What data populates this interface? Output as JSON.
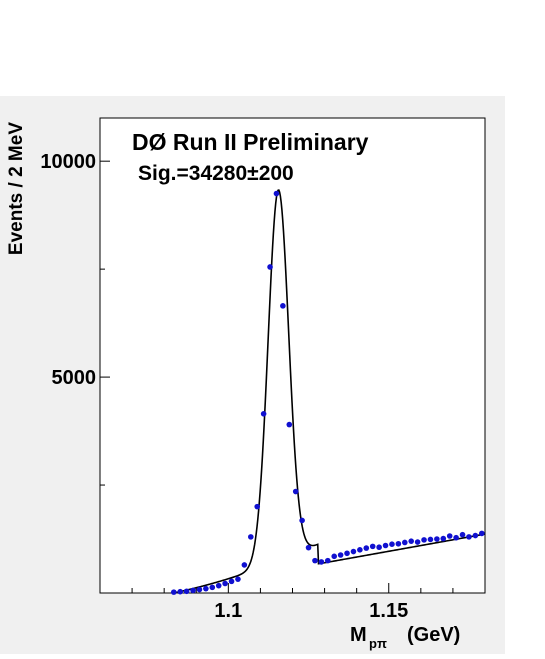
{
  "chart_data": {
    "type": "scatter",
    "title": "DØ Run II Preliminary",
    "annotation": "Sig.=34280±200",
    "xlabel_main": "M",
    "xlabel_sub": "pπ",
    "xlabel_unit": "(GeV)",
    "ylabel": "Events / 2 MeV",
    "xlim": [
      1.06,
      1.18
    ],
    "ylim": [
      0,
      11000
    ],
    "x_ticks": [
      1.1,
      1.15
    ],
    "x_tick_labels": [
      "1.1",
      "1.15"
    ],
    "y_ticks": [
      5000,
      10000
    ],
    "y_tick_labels": [
      "5000",
      "10000"
    ],
    "grid": false,
    "colors": {
      "points": "#1010d0",
      "fit": "#000000",
      "outer_bg": "#f0f0f0",
      "frame_bg": "#ffffff"
    },
    "series": [
      {
        "kind": "points",
        "x": [
          1.083,
          1.085,
          1.087,
          1.089,
          1.091,
          1.093,
          1.095,
          1.097,
          1.099,
          1.101,
          1.103,
          1.105,
          1.107,
          1.109,
          1.111,
          1.113,
          1.115,
          1.117,
          1.119,
          1.121,
          1.123,
          1.125,
          1.127,
          1.129,
          1.131,
          1.133,
          1.135,
          1.137,
          1.139,
          1.141,
          1.143,
          1.145,
          1.147,
          1.149,
          1.151,
          1.153,
          1.155,
          1.157,
          1.159,
          1.161,
          1.163,
          1.165,
          1.167,
          1.169,
          1.171,
          1.173,
          1.175,
          1.177,
          1.179
        ],
        "y": [
          20,
          30,
          40,
          60,
          80,
          100,
          130,
          170,
          220,
          270,
          320,
          650,
          1300,
          2000,
          4150,
          7550,
          9250,
          6650,
          3900,
          2350,
          1680,
          1050,
          750,
          720,
          750,
          850,
          880,
          920,
          960,
          1000,
          1040,
          1080,
          1060,
          1100,
          1130,
          1140,
          1170,
          1200,
          1180,
          1230,
          1240,
          1250,
          1260,
          1320,
          1280,
          1350,
          1300,
          1330,
          1380
        ]
      },
      {
        "kind": "fit",
        "model": "gaussian+linear",
        "signal": {
          "amplitude": 8600,
          "mean": 1.1156,
          "sigma": 0.0032
        },
        "background": {
          "start": 1.08,
          "slope": 13300,
          "y_at_1_13": 700
        },
        "x_range": [
          1.083,
          1.18
        ]
      }
    ]
  }
}
